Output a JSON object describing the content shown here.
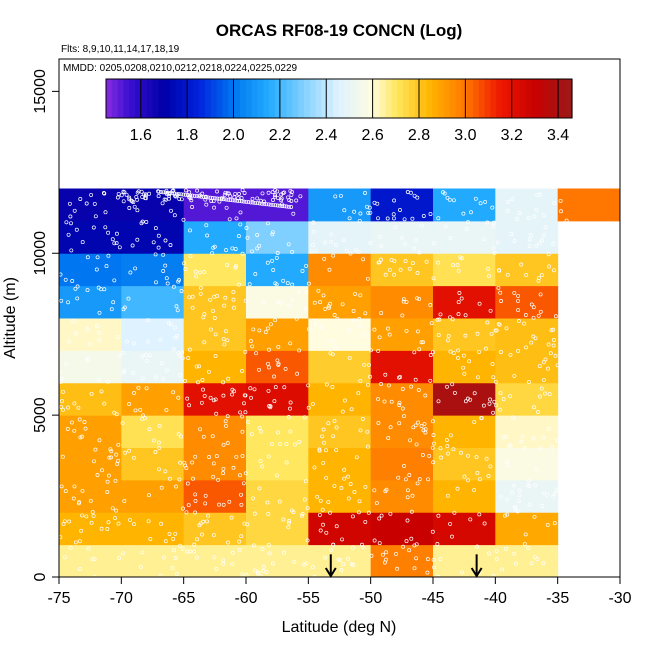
{
  "chart_data": {
    "type": "heatmap",
    "title": "ORCAS RF08-19 CONCN (Log)",
    "flights_label": "Flts: 8,9,10,11,14,17,18,19",
    "dates_label": "MMDD: 0205,0208,0210,0212,0218,0224,0225,0229",
    "xlabel": "Latitude (deg N)",
    "ylabel": "Altitude (m)",
    "xlim": [
      -75,
      -30
    ],
    "ylim": [
      0,
      16000
    ],
    "x_ticks": [
      -75,
      -70,
      -65,
      -60,
      -55,
      -50,
      -45,
      -40,
      -35,
      -30
    ],
    "x_tick_labels": [
      "-75",
      "-70",
      "-65",
      "-60",
      "-55",
      "-50",
      "-45",
      "-40",
      "-35",
      "-30"
    ],
    "y_ticks": [
      0,
      5000,
      10000,
      15000
    ],
    "y_tick_labels": [
      "0",
      "5000",
      "10000",
      "15000"
    ],
    "colorbar": {
      "min": 1.45,
      "max": 3.46,
      "ticks": [
        1.6,
        1.8,
        2.0,
        2.2,
        2.4,
        2.6,
        2.8,
        3.0,
        3.2,
        3.4
      ],
      "tick_labels": [
        "1.6",
        "1.8",
        "2.0",
        "2.2",
        "2.4",
        "2.6",
        "2.8",
        "3.0",
        "3.2",
        "3.4"
      ],
      "stops": [
        [
          1.45,
          "#8a2be2"
        ],
        [
          1.55,
          "#3a10d0"
        ],
        [
          1.7,
          "#0000a8"
        ],
        [
          1.85,
          "#0022dd"
        ],
        [
          2.0,
          "#0077f0"
        ],
        [
          2.15,
          "#22aaff"
        ],
        [
          2.3,
          "#80d0ff"
        ],
        [
          2.45,
          "#dff2ff"
        ],
        [
          2.6,
          "#fffce0"
        ],
        [
          2.7,
          "#ffe860"
        ],
        [
          2.85,
          "#ffb400"
        ],
        [
          3.0,
          "#ff7700"
        ],
        [
          3.15,
          "#ee1800"
        ],
        [
          3.3,
          "#c80000"
        ],
        [
          3.46,
          "#9a1a1a"
        ]
      ]
    },
    "lat_bin_edges": [
      -75,
      -70,
      -65,
      -60,
      -55,
      -50,
      -45,
      -40,
      -35,
      -30
    ],
    "alt_bin_edges": [
      0,
      1000,
      2000,
      3000,
      4000,
      5000,
      6000,
      7000,
      8000,
      9000,
      10000,
      11000,
      12000
    ],
    "cell_values": [
      [
        2.66,
        2.66,
        2.66,
        2.66,
        2.66,
        2.98,
        2.66,
        2.66,
        null
      ],
      [
        2.85,
        2.85,
        2.8,
        2.75,
        3.27,
        3.3,
        3.25,
        2.88,
        null
      ],
      [
        2.9,
        2.9,
        3.05,
        2.75,
        2.85,
        2.95,
        2.85,
        2.5,
        null
      ],
      [
        2.9,
        2.8,
        2.95,
        2.7,
        2.85,
        2.98,
        2.8,
        2.58,
        null
      ],
      [
        2.9,
        2.72,
        2.95,
        2.7,
        2.8,
        2.95,
        2.85,
        2.62,
        null
      ],
      [
        2.82,
        2.9,
        3.2,
        3.22,
        2.85,
        2.95,
        3.4,
        2.75,
        null
      ],
      [
        2.55,
        2.5,
        2.85,
        3.05,
        2.78,
        3.2,
        2.85,
        2.82,
        null
      ],
      [
        2.62,
        2.45,
        2.8,
        2.9,
        2.6,
        2.9,
        2.8,
        2.82,
        null
      ],
      [
        2.1,
        2.2,
        2.8,
        2.58,
        2.9,
        2.95,
        3.2,
        3.05,
        null
      ],
      [
        2.0,
        2.02,
        2.7,
        2.15,
        2.95,
        2.8,
        2.72,
        2.8,
        null
      ],
      [
        1.72,
        1.72,
        2.15,
        2.3,
        2.48,
        2.5,
        2.5,
        2.48,
        null
      ],
      [
        1.68,
        1.68,
        1.52,
        1.52,
        2.1,
        1.8,
        2.15,
        2.48,
        3.0
      ]
    ],
    "markers": [
      {
        "type": "arrow",
        "label": "down-arrow",
        "lat": -53.2,
        "alt_top": 700,
        "alt_bottom": 0
      },
      {
        "type": "arrow",
        "label": "down-arrow",
        "lat": -41.5,
        "alt_top": 700,
        "alt_bottom": 0
      }
    ]
  }
}
